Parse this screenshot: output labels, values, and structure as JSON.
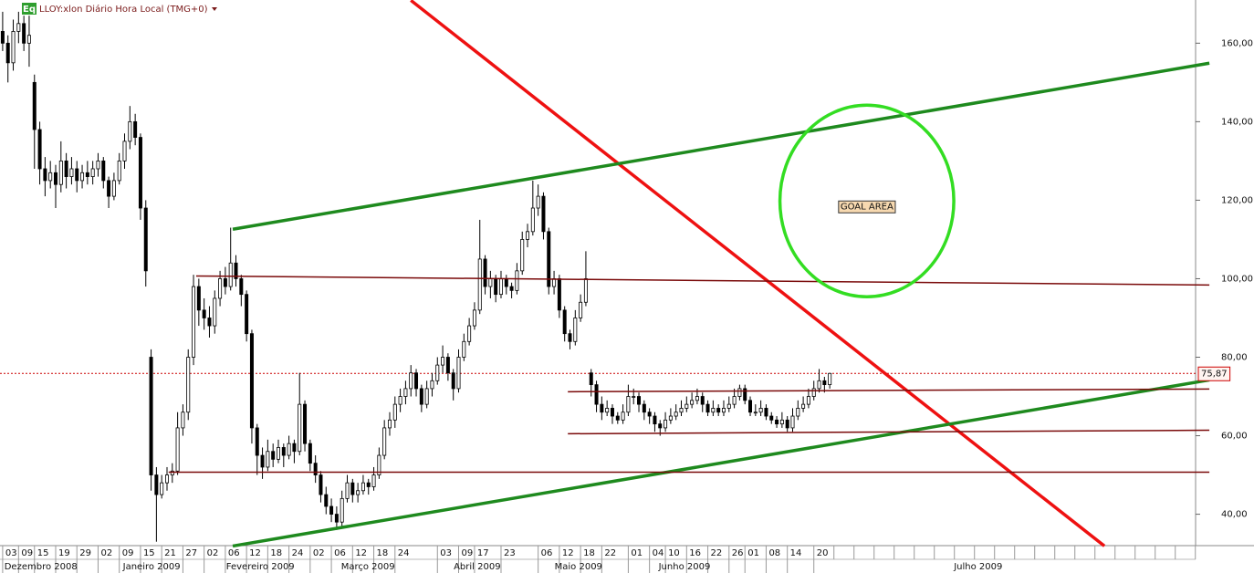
{
  "chart_data": {
    "type": "candlestick",
    "title": "LLOY:xlon Diário Hora Local (TMG+0)",
    "badge": "Eq",
    "xlim": [
      -0.5,
      225
    ],
    "ylim": [
      32,
      171
    ],
    "yticks": [
      {
        "value": 40,
        "label": "40,00"
      },
      {
        "value": 60,
        "label": "60,00"
      },
      {
        "value": 80,
        "label": "80,00"
      },
      {
        "value": 100,
        "label": "100,00"
      },
      {
        "value": 120,
        "label": "120,00"
      },
      {
        "value": 140,
        "label": "140,00"
      },
      {
        "value": 160,
        "label": "160,00"
      }
    ],
    "xticks": [
      {
        "value": 0,
        "label": "03"
      },
      {
        "value": 3,
        "label": "09"
      },
      {
        "value": 6,
        "label": "15"
      },
      {
        "value": 10,
        "label": "19"
      },
      {
        "value": 14,
        "label": "29"
      },
      {
        "value": 18,
        "label": "02"
      },
      {
        "value": 22,
        "label": "09"
      },
      {
        "value": 26,
        "label": "15"
      },
      {
        "value": 30,
        "label": "21"
      },
      {
        "value": 34,
        "label": "27"
      },
      {
        "value": 38,
        "label": "02"
      },
      {
        "value": 42,
        "label": "06"
      },
      {
        "value": 46,
        "label": "12"
      },
      {
        "value": 50,
        "label": "18"
      },
      {
        "value": 54,
        "label": "24"
      },
      {
        "value": 58,
        "label": "02"
      },
      {
        "value": 62,
        "label": "06"
      },
      {
        "value": 66,
        "label": "12"
      },
      {
        "value": 70,
        "label": "18"
      },
      {
        "value": 74,
        "label": "24"
      },
      {
        "value": 82,
        "label": "03"
      },
      {
        "value": 86,
        "label": "09"
      },
      {
        "value": 89,
        "label": "17"
      },
      {
        "value": 94,
        "label": "23"
      },
      {
        "value": 101,
        "label": "06"
      },
      {
        "value": 105,
        "label": "12"
      },
      {
        "value": 109,
        "label": "18"
      },
      {
        "value": 113,
        "label": "22"
      },
      {
        "value": 118,
        "label": "01"
      },
      {
        "value": 122,
        "label": "04"
      },
      {
        "value": 125,
        "label": "10"
      },
      {
        "value": 129,
        "label": "16"
      },
      {
        "value": 133,
        "label": "22"
      },
      {
        "value": 137,
        "label": "26"
      },
      {
        "value": 140,
        "label": "01"
      },
      {
        "value": 144,
        "label": "08"
      },
      {
        "value": 148,
        "label": "14"
      },
      {
        "value": 153,
        "label": "20"
      }
    ],
    "months": [
      {
        "value": 7.2,
        "label": "Dezembro 2008"
      },
      {
        "value": 28.1,
        "label": "Janeiro 2009"
      },
      {
        "value": 48.6,
        "label": "Fevereiro 2009"
      },
      {
        "value": 68.9,
        "label": "Março 2009"
      },
      {
        "value": 89.5,
        "label": "Abril 2009"
      },
      {
        "value": 108.6,
        "label": "Maio 2009"
      },
      {
        "value": 128.6,
        "label": "Junho 2009"
      },
      {
        "value": 184,
        "label": "Julho 2009"
      }
    ],
    "up_color": "#ffffff",
    "down_color": "#000000",
    "candles": [
      [
        163,
        168,
        158,
        160
      ],
      [
        160,
        162,
        150,
        155
      ],
      [
        155,
        166,
        153,
        163
      ],
      [
        163,
        168,
        160,
        165
      ],
      [
        165,
        167,
        158,
        160
      ],
      [
        160,
        167,
        154,
        162
      ],
      [
        150,
        152,
        128,
        138
      ],
      [
        138,
        140,
        124,
        128
      ],
      [
        128,
        131,
        121,
        125
      ],
      [
        125,
        130,
        123,
        127
      ],
      [
        127,
        129,
        118,
        124
      ],
      [
        124,
        135,
        122,
        130
      ],
      [
        130,
        132,
        123,
        126
      ],
      [
        126,
        131,
        124,
        128
      ],
      [
        128,
        130,
        122,
        125
      ],
      [
        125,
        129,
        123,
        127
      ],
      [
        127,
        130,
        124,
        126
      ],
      [
        126,
        130,
        124,
        128
      ],
      [
        128,
        132,
        126,
        130
      ],
      [
        130,
        131,
        123,
        125
      ],
      [
        125,
        126,
        118,
        121
      ],
      [
        121,
        127,
        120,
        125
      ],
      [
        125,
        132,
        124,
        130
      ],
      [
        130,
        137,
        128,
        135
      ],
      [
        135,
        144,
        133,
        140
      ],
      [
        140,
        142,
        134,
        136
      ],
      [
        136,
        137,
        115,
        118
      ],
      [
        118,
        120,
        98,
        102
      ],
      [
        80,
        82,
        46,
        50
      ],
      [
        50,
        52,
        33,
        45
      ],
      [
        45,
        50,
        44,
        48
      ],
      [
        48,
        52,
        46,
        50
      ],
      [
        50,
        53,
        48,
        51
      ],
      [
        51,
        66,
        50,
        62
      ],
      [
        62,
        68,
        60,
        66
      ],
      [
        66,
        82,
        64,
        80
      ],
      [
        80,
        101,
        78,
        98
      ],
      [
        98,
        100,
        88,
        92
      ],
      [
        92,
        95,
        87,
        90
      ],
      [
        90,
        93,
        85,
        88
      ],
      [
        88,
        97,
        86,
        95
      ],
      [
        95,
        102,
        93,
        100
      ],
      [
        100,
        103,
        96,
        98
      ],
      [
        98,
        113,
        97,
        104
      ],
      [
        104,
        106,
        98,
        100
      ],
      [
        100,
        101,
        93,
        96
      ],
      [
        96,
        97,
        84,
        86
      ],
      [
        86,
        87,
        58,
        62
      ],
      [
        62,
        63,
        50,
        55
      ],
      [
        55,
        57,
        49,
        52
      ],
      [
        52,
        59,
        51,
        56
      ],
      [
        56,
        58,
        52,
        54
      ],
      [
        54,
        59,
        53,
        57
      ],
      [
        57,
        58,
        52,
        55
      ],
      [
        55,
        60,
        54,
        58
      ],
      [
        58,
        59,
        53,
        56
      ],
      [
        56,
        76,
        55,
        68
      ],
      [
        68,
        69,
        56,
        58
      ],
      [
        58,
        59,
        51,
        53
      ],
      [
        53,
        55,
        48,
        50
      ],
      [
        50,
        51,
        43,
        45
      ],
      [
        45,
        47,
        40,
        42
      ],
      [
        42,
        44,
        38,
        40
      ],
      [
        40,
        42,
        36,
        38
      ],
      [
        38,
        46,
        37,
        44
      ],
      [
        44,
        50,
        43,
        48
      ],
      [
        48,
        49,
        43,
        45
      ],
      [
        45,
        48,
        43,
        46
      ],
      [
        46,
        50,
        45,
        48
      ],
      [
        48,
        49,
        45,
        47
      ],
      [
        47,
        52,
        46,
        50
      ],
      [
        50,
        57,
        49,
        55
      ],
      [
        55,
        64,
        54,
        62
      ],
      [
        62,
        66,
        60,
        64
      ],
      [
        64,
        70,
        62,
        68
      ],
      [
        68,
        72,
        66,
        70
      ],
      [
        70,
        74,
        68,
        72
      ],
      [
        72,
        78,
        70,
        76
      ],
      [
        76,
        77,
        70,
        72
      ],
      [
        72,
        73,
        66,
        68
      ],
      [
        68,
        74,
        67,
        72
      ],
      [
        72,
        76,
        70,
        74
      ],
      [
        74,
        80,
        73,
        78
      ],
      [
        78,
        83,
        76,
        80
      ],
      [
        80,
        81,
        74,
        76
      ],
      [
        76,
        77,
        69,
        72
      ],
      [
        72,
        82,
        71,
        80
      ],
      [
        80,
        86,
        79,
        84
      ],
      [
        84,
        90,
        83,
        88
      ],
      [
        88,
        94,
        87,
        92
      ],
      [
        92,
        115,
        91,
        105
      ],
      [
        105,
        106,
        96,
        98
      ],
      [
        98,
        102,
        95,
        100
      ],
      [
        100,
        101,
        94,
        96
      ],
      [
        96,
        102,
        95,
        100
      ],
      [
        100,
        101,
        96,
        98
      ],
      [
        98,
        99,
        95,
        97
      ],
      [
        97,
        104,
        96,
        102
      ],
      [
        102,
        112,
        101,
        110
      ],
      [
        110,
        114,
        108,
        112
      ],
      [
        112,
        125,
        111,
        118
      ],
      [
        118,
        124,
        116,
        121
      ],
      [
        121,
        122,
        110,
        112
      ],
      [
        112,
        113,
        96,
        98
      ],
      [
        98,
        102,
        96,
        100
      ],
      [
        100,
        101,
        90,
        92
      ],
      [
        92,
        93,
        84,
        86
      ],
      [
        86,
        87,
        82,
        84
      ],
      [
        84,
        92,
        83,
        90
      ],
      [
        90,
        96,
        89,
        94
      ],
      [
        94,
        107,
        93,
        100
      ],
      [
        76,
        77,
        70,
        73
      ],
      [
        73,
        74,
        66,
        68
      ],
      [
        68,
        70,
        64,
        66
      ],
      [
        66,
        69,
        65,
        67
      ],
      [
        67,
        68,
        63,
        65
      ],
      [
        65,
        66,
        63,
        64
      ],
      [
        64,
        68,
        63,
        66
      ],
      [
        66,
        73,
        65,
        70
      ],
      [
        70,
        72,
        68,
        70
      ],
      [
        70,
        71,
        66,
        68
      ],
      [
        68,
        69,
        64,
        66
      ],
      [
        66,
        67,
        63,
        65
      ],
      [
        65,
        66,
        61,
        63
      ],
      [
        63,
        64,
        60,
        62
      ],
      [
        62,
        66,
        61,
        64
      ],
      [
        64,
        67,
        63,
        65
      ],
      [
        65,
        68,
        64,
        66
      ],
      [
        66,
        69,
        65,
        67
      ],
      [
        67,
        70,
        66,
        68
      ],
      [
        68,
        71,
        67,
        69
      ],
      [
        69,
        72,
        68,
        70
      ],
      [
        70,
        71,
        66,
        68
      ],
      [
        68,
        69,
        65,
        66
      ],
      [
        66,
        69,
        65,
        67
      ],
      [
        67,
        68,
        65,
        66
      ],
      [
        66,
        69,
        65,
        67
      ],
      [
        67,
        70,
        66,
        68
      ],
      [
        68,
        72,
        67,
        70
      ],
      [
        70,
        73,
        69,
        72
      ],
      [
        72,
        73,
        68,
        69
      ],
      [
        69,
        70,
        65,
        66
      ],
      [
        66,
        68,
        65,
        66
      ],
      [
        66,
        69,
        65,
        67
      ],
      [
        67,
        68,
        64,
        65
      ],
      [
        65,
        66,
        63,
        64
      ],
      [
        64,
        65,
        62,
        63
      ],
      [
        63,
        66,
        62,
        64
      ],
      [
        64,
        65,
        61,
        62
      ],
      [
        62,
        67,
        61,
        65
      ],
      [
        65,
        69,
        64,
        67
      ],
      [
        67,
        70,
        66,
        68
      ],
      [
        68,
        72,
        67,
        70
      ],
      [
        70,
        74,
        69,
        72
      ],
      [
        72,
        77,
        71,
        74
      ],
      [
        74,
        75,
        71,
        73
      ],
      [
        73,
        76,
        72,
        75.87
      ]
    ],
    "last_price": {
      "value": 75.87,
      "label": "75,87",
      "color": "#cc0000"
    },
    "lines": [
      {
        "x": [
          77,
          207.8
        ],
        "y": [
          170.9,
          31.9
        ],
        "color": "#ee1111"
      },
      {
        "x": [
          43.4,
          227.6
        ],
        "y": [
          112.6,
          154.9
        ],
        "color": "#1e8a1e"
      },
      {
        "x": [
          43.4,
          227.6
        ],
        "y": [
          31.9,
          74.2
        ],
        "color": "#1e8a1e"
      },
      {
        "x": [
          36.5,
          227.6
        ],
        "y": [
          100.7,
          98.4
        ],
        "color": "#7a0a0a"
      },
      {
        "x": [
          106.6,
          227.6
        ],
        "y": [
          71.2,
          71.9
        ],
        "color": "#7a0a0a"
      },
      {
        "x": [
          106.6,
          227.6
        ],
        "y": [
          60.5,
          61.4
        ],
        "color": "#7a0a0a"
      },
      {
        "x": [
          31.3,
          227.6
        ],
        "y": [
          50.7,
          50.7
        ],
        "color": "#7a0a0a"
      }
    ],
    "goal": {
      "cx": 163,
      "cy": 119.8,
      "rx": 16.4,
      "ry": 24.4,
      "color": "#33dd22",
      "label": "GOAL AREA"
    }
  }
}
